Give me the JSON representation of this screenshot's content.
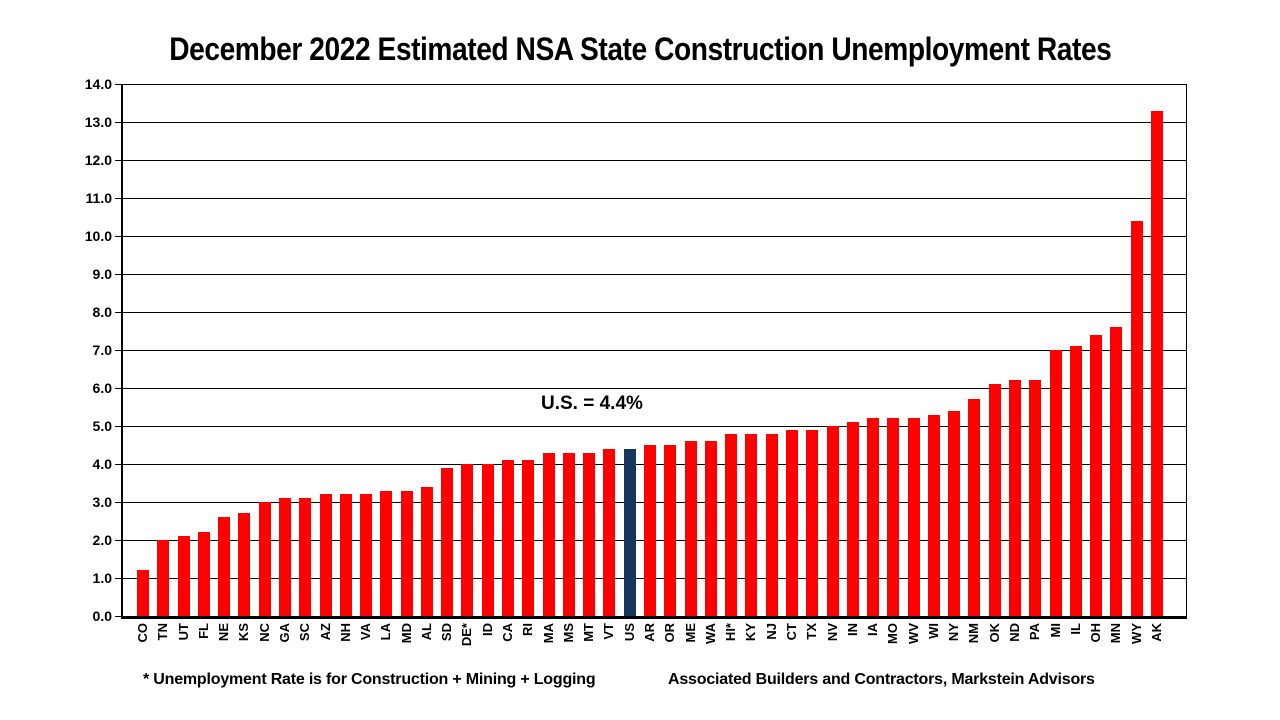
{
  "title": "December 2022 Estimated NSA State Construction Unemployment Rates",
  "annotation_label": "U.S. = 4.4%",
  "footnote_left": "* Unemployment Rate is for Construction + Mining + Logging",
  "footnote_right": "Associated Builders and Contractors, Markstein Advisors",
  "colors": {
    "bar": "#FF0000",
    "highlight_bar": "#17375E",
    "axis": "#000000",
    "background": "#FFFFFF"
  },
  "chart_data": {
    "type": "bar",
    "title": "December 2022 Estimated NSA State Construction Unemployment Rates",
    "xlabel": "",
    "ylabel": "",
    "ylim": [
      0.0,
      14.0
    ],
    "ytick_step": 1.0,
    "y_tick_labels": [
      "0.0",
      "1.0",
      "2.0",
      "3.0",
      "4.0",
      "5.0",
      "6.0",
      "7.0",
      "8.0",
      "9.0",
      "10.0",
      "11.0",
      "12.0",
      "13.0",
      "14.0"
    ],
    "grid": true,
    "legend": false,
    "highlight_category": "US",
    "annotation": {
      "text": "U.S. = 4.4%",
      "refers_to": "US"
    },
    "categories": [
      "CO",
      "TN",
      "UT",
      "FL",
      "NE",
      "KS",
      "NC",
      "GA",
      "SC",
      "AZ",
      "NH",
      "VA",
      "LA",
      "MD",
      "AL",
      "SD",
      "DE*",
      "ID",
      "CA",
      "RI",
      "MA",
      "MS",
      "MT",
      "VT",
      "US",
      "AR",
      "OR",
      "ME",
      "WA",
      "HI*",
      "KY",
      "NJ",
      "CT",
      "TX",
      "NV",
      "IN",
      "IA",
      "MO",
      "WV",
      "WI",
      "NY",
      "NM",
      "OK",
      "ND",
      "PA",
      "MI",
      "IL",
      "OH",
      "MN",
      "WY",
      "AK"
    ],
    "values": [
      1.2,
      2.0,
      2.1,
      2.2,
      2.6,
      2.7,
      3.0,
      3.1,
      3.1,
      3.2,
      3.2,
      3.2,
      3.3,
      3.3,
      3.4,
      3.9,
      4.0,
      4.0,
      4.1,
      4.1,
      4.3,
      4.3,
      4.3,
      4.4,
      4.4,
      4.5,
      4.5,
      4.6,
      4.6,
      4.8,
      4.8,
      4.8,
      4.9,
      4.9,
      5.0,
      5.1,
      5.2,
      5.2,
      5.2,
      5.3,
      5.4,
      5.7,
      6.1,
      6.2,
      6.2,
      7.0,
      7.1,
      7.4,
      7.6,
      10.4,
      13.3
    ]
  }
}
